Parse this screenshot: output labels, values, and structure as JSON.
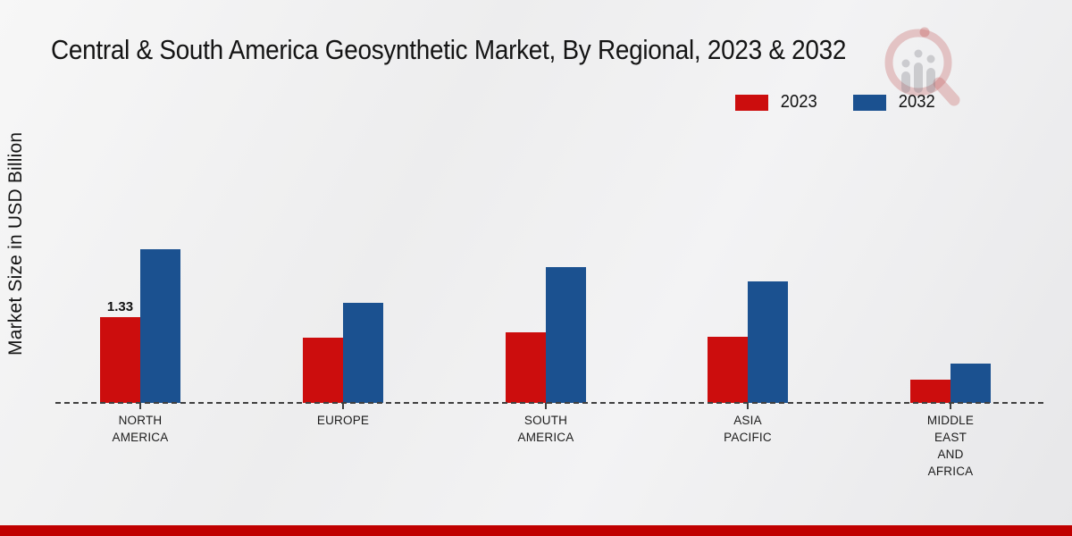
{
  "title": "Central & South America Geosynthetic Market, By Regional, 2023 & 2032",
  "ylabel": "Market Size in USD Billion",
  "legend": [
    {
      "label": "2023",
      "color": "#cc0d0d"
    },
    {
      "label": "2032",
      "color": "#1b5190"
    }
  ],
  "watermark": "market-research-future-logo",
  "footer": {
    "band_color": "#c00000"
  },
  "chart_data": {
    "type": "bar",
    "categories": [
      "NORTH AMERICA",
      "EUROPE",
      "SOUTH AMERICA",
      "ASIA PACIFIC",
      "MIDDLE EAST AND AFRICA"
    ],
    "series": [
      {
        "name": "2023",
        "color": "#cc0d0d",
        "values": [
          1.33,
          1.01,
          1.09,
          1.03,
          0.36
        ]
      },
      {
        "name": "2032",
        "color": "#1b5190",
        "values": [
          2.38,
          1.55,
          2.11,
          1.88,
          0.61
        ]
      }
    ],
    "data_labels": [
      {
        "series": "2023",
        "category": "NORTH AMERICA",
        "value": "1.33"
      }
    ],
    "title": "Central & South America Geosynthetic Market, By Regional, 2023 & 2032",
    "xlabel": "",
    "ylabel": "Market Size in USD Billion",
    "ylim": [
      0,
      2.6
    ],
    "grid": false,
    "axis_style": "dashed-baseline-only",
    "legend_position": "top-right"
  }
}
